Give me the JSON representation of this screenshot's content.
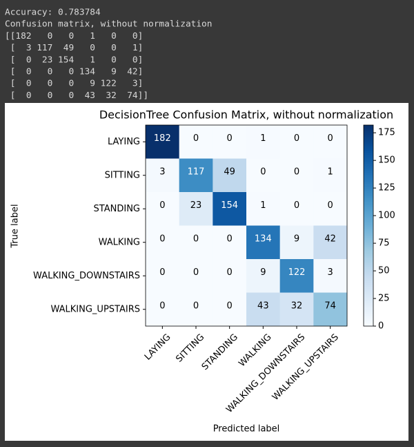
{
  "console": {
    "lines": [
      "Accuracy: 0.783784",
      "Confusion matrix, without normalization",
      "[[182   0   0   1   0   0]",
      " [  3 117  49   0   0   1]",
      " [  0  23 154   1   0   0]",
      " [  0   0   0 134   9  42]",
      " [  0   0   0   9 122   3]",
      " [  0   0   0  43  32  74]]"
    ]
  },
  "chart_data": {
    "type": "heatmap",
    "title": "DecisionTree Confusion Matrix, without normalization",
    "xlabel": "Predicted label",
    "ylabel": "True label",
    "categories": [
      "LAYING",
      "SITTING",
      "STANDING",
      "WALKING",
      "WALKING_DOWNSTAIRS",
      "WALKING_UPSTAIRS"
    ],
    "y_categories": [
      "LAYING",
      "SITTING",
      "STANDING",
      "WALKING",
      "WALKING_DOWNSTAIRS",
      "WALKING_UPSTAIRS"
    ],
    "values": [
      [
        182,
        0,
        0,
        1,
        0,
        0
      ],
      [
        3,
        117,
        49,
        0,
        0,
        1
      ],
      [
        0,
        23,
        154,
        1,
        0,
        0
      ],
      [
        0,
        0,
        0,
        134,
        9,
        42
      ],
      [
        0,
        0,
        0,
        9,
        122,
        3
      ],
      [
        0,
        0,
        0,
        43,
        32,
        74
      ]
    ],
    "colormap": "Blues",
    "clim": [
      0,
      182
    ],
    "cticks": [
      0,
      25,
      50,
      75,
      100,
      125,
      150,
      175
    ]
  }
}
